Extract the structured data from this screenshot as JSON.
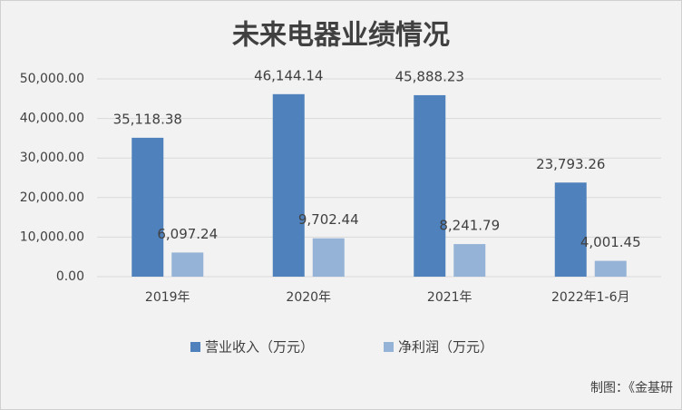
{
  "chart_data": {
    "type": "bar",
    "title": "未来电器业绩情况",
    "categories": [
      "2019年",
      "2020年",
      "2021年",
      "2022年1-6月"
    ],
    "series": [
      {
        "name": "营业收入（万元）",
        "color": "#4f81bd",
        "values": [
          35118.38,
          46144.14,
          45888.23,
          23793.26
        ],
        "value_labels": [
          "35,118.38",
          "46,144.14",
          "45,888.23",
          "23,793.26"
        ]
      },
      {
        "name": "净利润（万元）",
        "color": "#95b3d7",
        "values": [
          6097.24,
          9702.44,
          8241.79,
          4001.45
        ],
        "value_labels": [
          "6,097.24",
          "9,702.44",
          "8,241.79",
          "4,001.45"
        ]
      }
    ],
    "ylim": [
      0,
      50000
    ],
    "yticks": [
      {
        "value": 0,
        "label": "0.00"
      },
      {
        "value": 10000,
        "label": "10,000.00"
      },
      {
        "value": 20000,
        "label": "20,000.00"
      },
      {
        "value": 30000,
        "label": "30,000.00"
      },
      {
        "value": 40000,
        "label": "40,000.00"
      },
      {
        "value": 50000,
        "label": "50,000.00"
      }
    ],
    "grid": true,
    "legend": "bottom",
    "source": "制图：《金基研"
  }
}
